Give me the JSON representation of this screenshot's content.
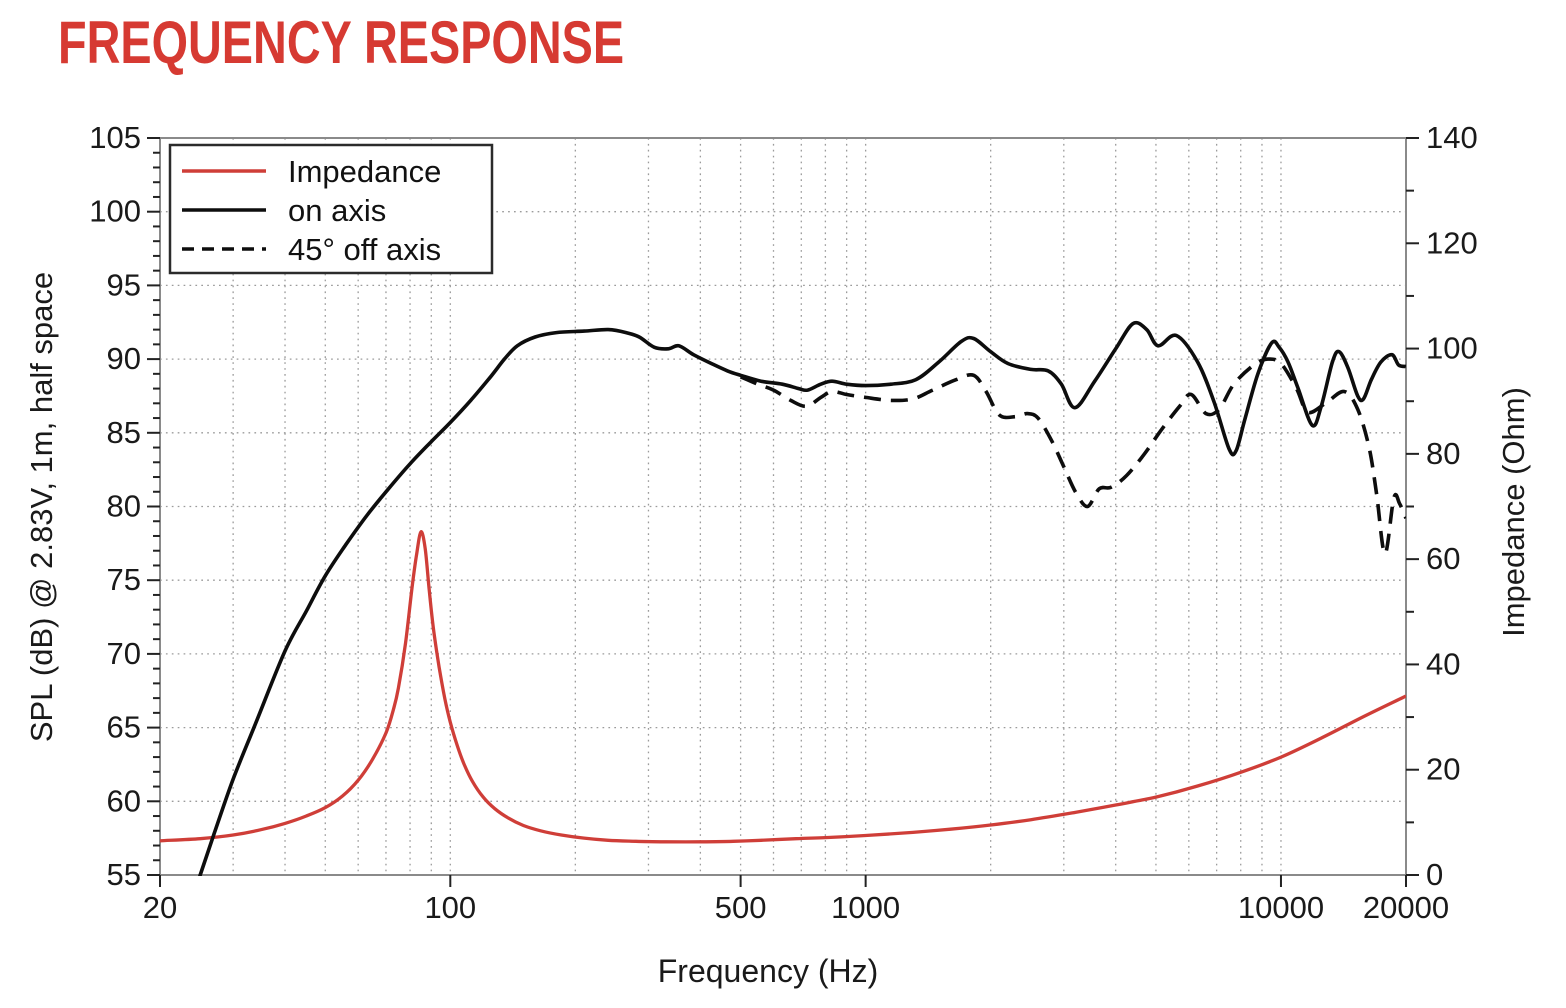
{
  "title": "FREQUENCY RESPONSE",
  "colors": {
    "title_red": "#d63a32",
    "impedance_red": "#cf3e38",
    "curve_black": "#0d0d0d",
    "frame_gray": "#8a8a8a",
    "grid_gray": "#9b9b9b",
    "text_black": "#1a1a1a",
    "legend_border": "#2b2b2b"
  },
  "legend": {
    "items": [
      {
        "label": "Impedance",
        "color": "#cf3e38",
        "dash": "none"
      },
      {
        "label": "on axis",
        "color": "#0d0d0d",
        "dash": "none"
      },
      {
        "label": "45° off axis",
        "color": "#0d0d0d",
        "dash": "dashed"
      }
    ]
  },
  "chart_data": {
    "type": "line",
    "title": "FREQUENCY RESPONSE",
    "xlabel": "Frequency (Hz)",
    "ylabel_left": "SPL (dB) @ 2.83V, 1m, half space",
    "ylabel_right": "Impedance (Ohm)",
    "x_scale": "log",
    "xlim": [
      20,
      20000
    ],
    "ylim_left": [
      55,
      105
    ],
    "ylim_right": [
      0,
      140
    ],
    "x_ticks": [
      20,
      100,
      500,
      1000,
      10000,
      20000
    ],
    "y_ticks_left": [
      55,
      60,
      65,
      70,
      75,
      80,
      85,
      90,
      95,
      100,
      105
    ],
    "y_ticks_right": [
      0,
      20,
      40,
      60,
      80,
      100,
      120,
      140
    ],
    "grid": "dotted, log minors vertical + 5 dB horizontal",
    "legend_position": "upper left",
    "series": [
      {
        "name": "Impedance",
        "axis": "right",
        "unit": "Ohm",
        "color": "#cf3e38",
        "style": "solid",
        "points": [
          [
            20,
            6.5
          ],
          [
            25,
            6.9
          ],
          [
            30,
            7.6
          ],
          [
            35,
            8.6
          ],
          [
            40,
            9.8
          ],
          [
            45,
            11.2
          ],
          [
            50,
            12.8
          ],
          [
            55,
            15
          ],
          [
            60,
            18
          ],
          [
            65,
            22
          ],
          [
            70,
            27
          ],
          [
            73,
            31.5
          ],
          [
            75,
            35.5
          ],
          [
            78,
            44
          ],
          [
            81,
            55
          ],
          [
            83,
            61
          ],
          [
            85,
            65.2
          ],
          [
            87,
            62
          ],
          [
            89,
            54
          ],
          [
            91,
            47
          ],
          [
            94,
            39.5
          ],
          [
            97,
            33.5
          ],
          [
            100,
            29
          ],
          [
            104,
            24.5
          ],
          [
            108,
            21
          ],
          [
            113,
            17.8
          ],
          [
            120,
            14.8
          ],
          [
            128,
            12.6
          ],
          [
            138,
            10.8
          ],
          [
            150,
            9.4
          ],
          [
            165,
            8.4
          ],
          [
            185,
            7.6
          ],
          [
            210,
            7
          ],
          [
            240,
            6.6
          ],
          [
            280,
            6.4
          ],
          [
            330,
            6.3
          ],
          [
            400,
            6.3
          ],
          [
            480,
            6.4
          ],
          [
            560,
            6.6
          ],
          [
            680,
            6.9
          ],
          [
            800,
            7.1
          ],
          [
            1000,
            7.5
          ],
          [
            1300,
            8.1
          ],
          [
            1600,
            8.7
          ],
          [
            2000,
            9.5
          ],
          [
            2500,
            10.5
          ],
          [
            3200,
            11.9
          ],
          [
            4000,
            13.3
          ],
          [
            5000,
            14.8
          ],
          [
            6300,
            16.9
          ],
          [
            8000,
            19.5
          ],
          [
            10000,
            22.4
          ],
          [
            12500,
            26
          ],
          [
            16000,
            30.3
          ],
          [
            20000,
            34
          ]
        ]
      },
      {
        "name": "on axis",
        "axis": "left",
        "unit": "dB",
        "color": "#0d0d0d",
        "style": "solid",
        "points": [
          [
            24.5,
            54.2
          ],
          [
            25,
            55
          ],
          [
            27,
            57.8
          ],
          [
            30,
            61.5
          ],
          [
            34,
            65.3
          ],
          [
            40,
            70.2
          ],
          [
            45,
            72.9
          ],
          [
            50,
            75.3
          ],
          [
            56,
            77.4
          ],
          [
            63,
            79.4
          ],
          [
            71,
            81.2
          ],
          [
            80,
            82.9
          ],
          [
            90,
            84.4
          ],
          [
            100,
            85.7
          ],
          [
            112,
            87.2
          ],
          [
            125,
            88.8
          ],
          [
            135,
            90
          ],
          [
            145,
            90.9
          ],
          [
            160,
            91.5
          ],
          [
            180,
            91.8
          ],
          [
            210,
            91.9
          ],
          [
            240,
            92
          ],
          [
            265,
            91.8
          ],
          [
            285,
            91.5
          ],
          [
            310,
            90.8
          ],
          [
            335,
            90.7
          ],
          [
            355,
            90.9
          ],
          [
            385,
            90.3
          ],
          [
            425,
            89.7
          ],
          [
            465,
            89.2
          ],
          [
            500,
            88.9
          ],
          [
            560,
            88.5
          ],
          [
            630,
            88.3
          ],
          [
            690,
            88
          ],
          [
            725,
            87.9
          ],
          [
            780,
            88.3
          ],
          [
            830,
            88.5
          ],
          [
            900,
            88.3
          ],
          [
            1000,
            88.2
          ],
          [
            1150,
            88.3
          ],
          [
            1320,
            88.6
          ],
          [
            1500,
            89.8
          ],
          [
            1700,
            91.2
          ],
          [
            1820,
            91.4
          ],
          [
            2000,
            90.5
          ],
          [
            2200,
            89.7
          ],
          [
            2500,
            89.3
          ],
          [
            2750,
            89.2
          ],
          [
            2960,
            88.3
          ],
          [
            3190,
            86.7
          ],
          [
            3560,
            88.5
          ],
          [
            4000,
            90.7
          ],
          [
            4400,
            92.4
          ],
          [
            4750,
            92
          ],
          [
            5060,
            90.9
          ],
          [
            5600,
            91.6
          ],
          [
            6300,
            89.8
          ],
          [
            6900,
            87.1
          ],
          [
            7500,
            83.9
          ],
          [
            7800,
            83.8
          ],
          [
            8200,
            86
          ],
          [
            8800,
            89
          ],
          [
            9500,
            91.1
          ],
          [
            9900,
            90.8
          ],
          [
            10400,
            89.8
          ],
          [
            11000,
            88
          ],
          [
            11900,
            85.5
          ],
          [
            12500,
            86.8
          ],
          [
            13300,
            89.8
          ],
          [
            13800,
            90.5
          ],
          [
            14500,
            89.4
          ],
          [
            15300,
            87.5
          ],
          [
            15800,
            87.3
          ],
          [
            16500,
            88.6
          ],
          [
            17400,
            89.8
          ],
          [
            18500,
            90.3
          ],
          [
            19200,
            89.6
          ],
          [
            20000,
            89.5
          ]
        ]
      },
      {
        "name": "45° off axis",
        "axis": "left",
        "unit": "dB",
        "color": "#0d0d0d",
        "style": "dashed",
        "points": [
          [
            500,
            88.8
          ],
          [
            550,
            88.3
          ],
          [
            600,
            87.9
          ],
          [
            660,
            87.2
          ],
          [
            720,
            86.8
          ],
          [
            780,
            87.4
          ],
          [
            830,
            87.8
          ],
          [
            900,
            87.6
          ],
          [
            1000,
            87.4
          ],
          [
            1150,
            87.2
          ],
          [
            1300,
            87.3
          ],
          [
            1450,
            87.9
          ],
          [
            1650,
            88.6
          ],
          [
            1820,
            88.9
          ],
          [
            1950,
            87.8
          ],
          [
            2100,
            86.2
          ],
          [
            2300,
            86.1
          ],
          [
            2450,
            86.3
          ],
          [
            2600,
            86
          ],
          [
            2800,
            84.5
          ],
          [
            3000,
            82.7
          ],
          [
            3200,
            81
          ],
          [
            3420,
            80
          ],
          [
            3650,
            81.2
          ],
          [
            3900,
            81.3
          ],
          [
            4250,
            82.1
          ],
          [
            4700,
            83.6
          ],
          [
            5150,
            85.2
          ],
          [
            5700,
            86.8
          ],
          [
            6080,
            87.6
          ],
          [
            6600,
            86.3
          ],
          [
            7100,
            86.6
          ],
          [
            7700,
            88.3
          ],
          [
            8600,
            89.6
          ],
          [
            9300,
            90
          ],
          [
            10000,
            89.7
          ],
          [
            10900,
            88
          ],
          [
            11600,
            86.4
          ],
          [
            12800,
            87
          ],
          [
            14200,
            87.8
          ],
          [
            15300,
            86.6
          ],
          [
            16300,
            84
          ],
          [
            17000,
            80.8
          ],
          [
            17800,
            76.8
          ],
          [
            18700,
            80.6
          ],
          [
            19300,
            80.2
          ],
          [
            20000,
            79.2
          ]
        ]
      }
    ]
  }
}
